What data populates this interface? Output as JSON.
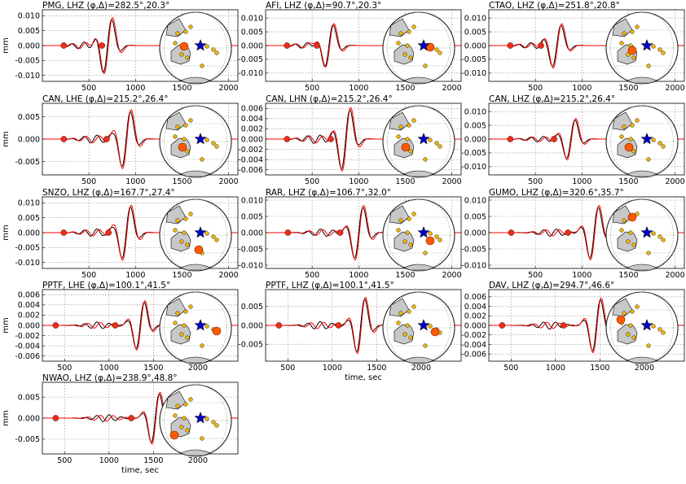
{
  "figure": {
    "ylabel": "mm",
    "xlabel": "time, sec",
    "colors": {
      "observed": "#000000",
      "synthetic": "#ff0000",
      "marker_fill": "#e8301c",
      "grid": "#888888",
      "map_land": "#c8c8c8",
      "station_dot": "#f0b400",
      "target_station": "#ff5a00",
      "epicenter_star": "#0000cc"
    }
  },
  "chart_data": [
    {
      "type": "line",
      "title": "PMG, LHZ (φ,Δ)=282.5°,20.3°",
      "xlim": [
        0,
        2100
      ],
      "ylim": [
        -0.012,
        0.012
      ],
      "yticks": [
        "0.010",
        "0.005",
        "0.000",
        "-0.005",
        "-0.010"
      ],
      "xticks": [
        500,
        1000,
        1500,
        2000
      ],
      "wave_center": 700,
      "amplitude": 0.0105,
      "onset": 230,
      "marker2": 640,
      "ylabel": "mm",
      "xlabel": ""
    },
    {
      "type": "line",
      "title": "AFI, LHZ (φ,Δ)=90.7°,20.3°",
      "xlim": [
        0,
        2100
      ],
      "ylim": [
        -0.013,
        0.013
      ],
      "yticks": [
        "0.010",
        "0.005",
        "0.000",
        "-0.005",
        "-0.010"
      ],
      "xticks": [
        500,
        1000,
        1500,
        2000
      ],
      "wave_center": 680,
      "amplitude": 0.009,
      "onset": 230,
      "marker2": 550,
      "ylabel": "",
      "xlabel": ""
    },
    {
      "type": "line",
      "title": "CTAO, LHZ (φ,Δ)=251.8°,20.8°",
      "xlim": [
        0,
        2100
      ],
      "ylim": [
        -0.013,
        0.013
      ],
      "yticks": [
        "0.010",
        "0.005",
        "0.000",
        "-0.005",
        "-0.010"
      ],
      "xticks": [
        500,
        1000,
        1500,
        2000
      ],
      "wave_center": 730,
      "amplitude": 0.009,
      "onset": 230,
      "marker2": 560,
      "ylabel": "",
      "xlabel": ""
    },
    {
      "type": "line",
      "title": "CAN, LHE (φ,Δ)=215.2°,26.4°",
      "xlim": [
        0,
        2100
      ],
      "ylim": [
        -0.008,
        0.008
      ],
      "yticks": [
        "0.005",
        "0.000",
        "-0.005"
      ],
      "xticks": [
        500,
        1000,
        1500,
        2000
      ],
      "wave_center": 900,
      "amplitude": 0.0075,
      "onset": 230,
      "marker2": 690,
      "ylabel": "mm",
      "xlabel": ""
    },
    {
      "type": "line",
      "title": "CAN, LHN (φ,Δ)=215.2°,26.4°",
      "xlim": [
        0,
        2100
      ],
      "ylim": [
        -0.007,
        0.007
      ],
      "yticks": [
        "0.006",
        "0.004",
        "0.002",
        "0.000",
        "-0.002",
        "-0.004",
        "-0.006"
      ],
      "xticks": [
        500,
        1000,
        1500,
        2000
      ],
      "wave_center": 860,
      "amplitude": 0.007,
      "onset": 230,
      "marker2": 700,
      "ylabel": "",
      "xlabel": ""
    },
    {
      "type": "line",
      "title": "CAN, LHZ (φ,Δ)=215.2°,26.4°",
      "xlim": [
        0,
        2100
      ],
      "ylim": [
        -0.013,
        0.013
      ],
      "yticks": [
        "0.010",
        "0.005",
        "0.000",
        "-0.005",
        "-0.010"
      ],
      "xticks": [
        500,
        1000,
        1500,
        2000
      ],
      "wave_center": 880,
      "amplitude": 0.0085,
      "onset": 230,
      "marker2": 700,
      "ylabel": "",
      "xlabel": ""
    },
    {
      "type": "line",
      "title": "SNZO, LHZ (φ,Δ)=167.7°,27.4°",
      "xlim": [
        0,
        2100
      ],
      "ylim": [
        -0.012,
        0.012
      ],
      "yticks": [
        "0.010",
        "0.005",
        "0.000",
        "-0.005",
        "-0.010"
      ],
      "xticks": [
        500,
        1000,
        1500,
        2000
      ],
      "wave_center": 900,
      "amplitude": 0.0105,
      "onset": 230,
      "marker2": 710,
      "ylabel": "mm",
      "xlabel": ""
    },
    {
      "type": "line",
      "title": "RAR, LHZ (φ,Δ)=106.7°,32.0°",
      "xlim": [
        0,
        2100
      ],
      "ylim": [
        -0.011,
        0.011
      ],
      "yticks": [
        "0.010",
        "0.005",
        "0.000",
        "-0.005",
        "-0.010"
      ],
      "xticks": [
        500,
        1000,
        1500,
        2000
      ],
      "wave_center": 1000,
      "amplitude": 0.0095,
      "onset": 240,
      "marker2": 800,
      "ylabel": "",
      "xlabel": ""
    },
    {
      "type": "line",
      "title": "GUMO, LHZ (φ,Δ)=320.6°,35.7°",
      "xlim": [
        0,
        2100
      ],
      "ylim": [
        -0.011,
        0.011
      ],
      "yticks": [
        "0.010",
        "0.005",
        "0.000",
        "-0.005",
        "-0.010"
      ],
      "xticks": [
        500,
        1000,
        1500,
        2000
      ],
      "wave_center": 1130,
      "amplitude": 0.0095,
      "onset": 240,
      "marker2": 850,
      "ylabel": "",
      "xlabel": ""
    },
    {
      "type": "line",
      "title": "PPTF, LHE (φ,Δ)=100.1°,41.5°",
      "xlim": [
        250,
        2450
      ],
      "ylim": [
        -0.007,
        0.007
      ],
      "yticks": [
        "0.006",
        "0.004",
        "0.002",
        "0.000",
        "-0.002",
        "-0.004",
        "-0.006"
      ],
      "xticks": [
        500,
        1000,
        1500,
        2000
      ],
      "wave_center": 1350,
      "amplitude": 0.0055,
      "onset": 400,
      "marker2": 1070,
      "ylabel": "mm",
      "xlabel": ""
    },
    {
      "type": "line",
      "title": "PPTF, LHZ (φ,Δ)=100.1°,41.5°",
      "xlim": [
        250,
        2450
      ],
      "ylim": [
        -0.0095,
        0.0095
      ],
      "yticks": [
        "0.005",
        "0.000",
        "-0.005"
      ],
      "xticks": [
        500,
        1000,
        1500,
        2000
      ],
      "wave_center": 1320,
      "amplitude": 0.0085,
      "onset": 400,
      "marker2": 1070,
      "ylabel": "",
      "xlabel": "time, sec"
    },
    {
      "type": "line",
      "title": "DAV, LHZ (φ,Δ)=294.7°,46.6°",
      "xlim": [
        250,
        2450
      ],
      "ylim": [
        -0.0075,
        0.0075
      ],
      "yticks": [
        "0.006",
        "0.004",
        "0.002",
        "0.000",
        "-0.002",
        "-0.004",
        "-0.006"
      ],
      "xticks": [
        500,
        1000,
        1500,
        2000
      ],
      "wave_center": 1460,
      "amplitude": 0.0065,
      "onset": 400,
      "marker2": 1090,
      "ylabel": "",
      "xlabel": ""
    },
    {
      "type": "line",
      "title": "NWAO, LHZ (φ,Δ)=238.9°,48.8°",
      "xlim": [
        250,
        2450
      ],
      "ylim": [
        -0.0085,
        0.0085
      ],
      "yticks": [
        "0.005",
        "0.000",
        "-0.005"
      ],
      "xticks": [
        500,
        1000,
        1500,
        2000
      ],
      "wave_center": 1520,
      "amplitude": 0.007,
      "onset": 400,
      "marker2": 1250,
      "ylabel": "mm",
      "xlabel": "time, sec"
    }
  ]
}
